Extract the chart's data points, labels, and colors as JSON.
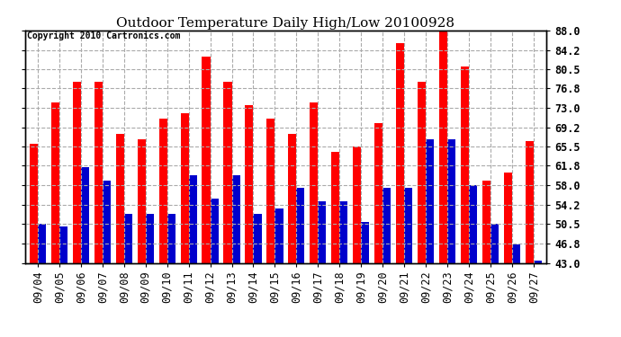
{
  "title": "Outdoor Temperature Daily High/Low 20100928",
  "copyright": "Copyright 2010 Cartronics.com",
  "dates": [
    "09/04",
    "09/05",
    "09/06",
    "09/07",
    "09/08",
    "09/09",
    "09/10",
    "09/11",
    "09/12",
    "09/13",
    "09/14",
    "09/15",
    "09/16",
    "09/17",
    "09/18",
    "09/19",
    "09/20",
    "09/21",
    "09/22",
    "09/23",
    "09/24",
    "09/25",
    "09/26",
    "09/27"
  ],
  "highs": [
    66.0,
    74.0,
    78.0,
    78.0,
    68.0,
    67.0,
    71.0,
    72.0,
    83.0,
    78.0,
    73.5,
    71.0,
    68.0,
    74.0,
    64.5,
    65.5,
    70.0,
    85.5,
    78.0,
    88.0,
    81.0,
    59.0,
    60.5,
    66.5
  ],
  "lows": [
    50.5,
    50.0,
    61.5,
    59.0,
    52.5,
    52.5,
    52.5,
    60.0,
    55.5,
    60.0,
    52.5,
    53.5,
    57.5,
    55.0,
    55.0,
    51.0,
    57.5,
    57.5,
    67.0,
    67.0,
    58.0,
    50.5,
    46.5,
    43.5
  ],
  "high_color": "#ff0000",
  "low_color": "#0000cc",
  "bg_color": "#ffffff",
  "grid_color": "#aaaaaa",
  "ymin": 43.0,
  "ymax": 88.0,
  "yticks": [
    43.0,
    46.8,
    50.5,
    54.2,
    58.0,
    61.8,
    65.5,
    69.2,
    73.0,
    76.8,
    80.5,
    84.2,
    88.0
  ],
  "bar_width": 0.38,
  "title_fontsize": 11,
  "tick_fontsize": 8.5,
  "copyright_fontsize": 7
}
